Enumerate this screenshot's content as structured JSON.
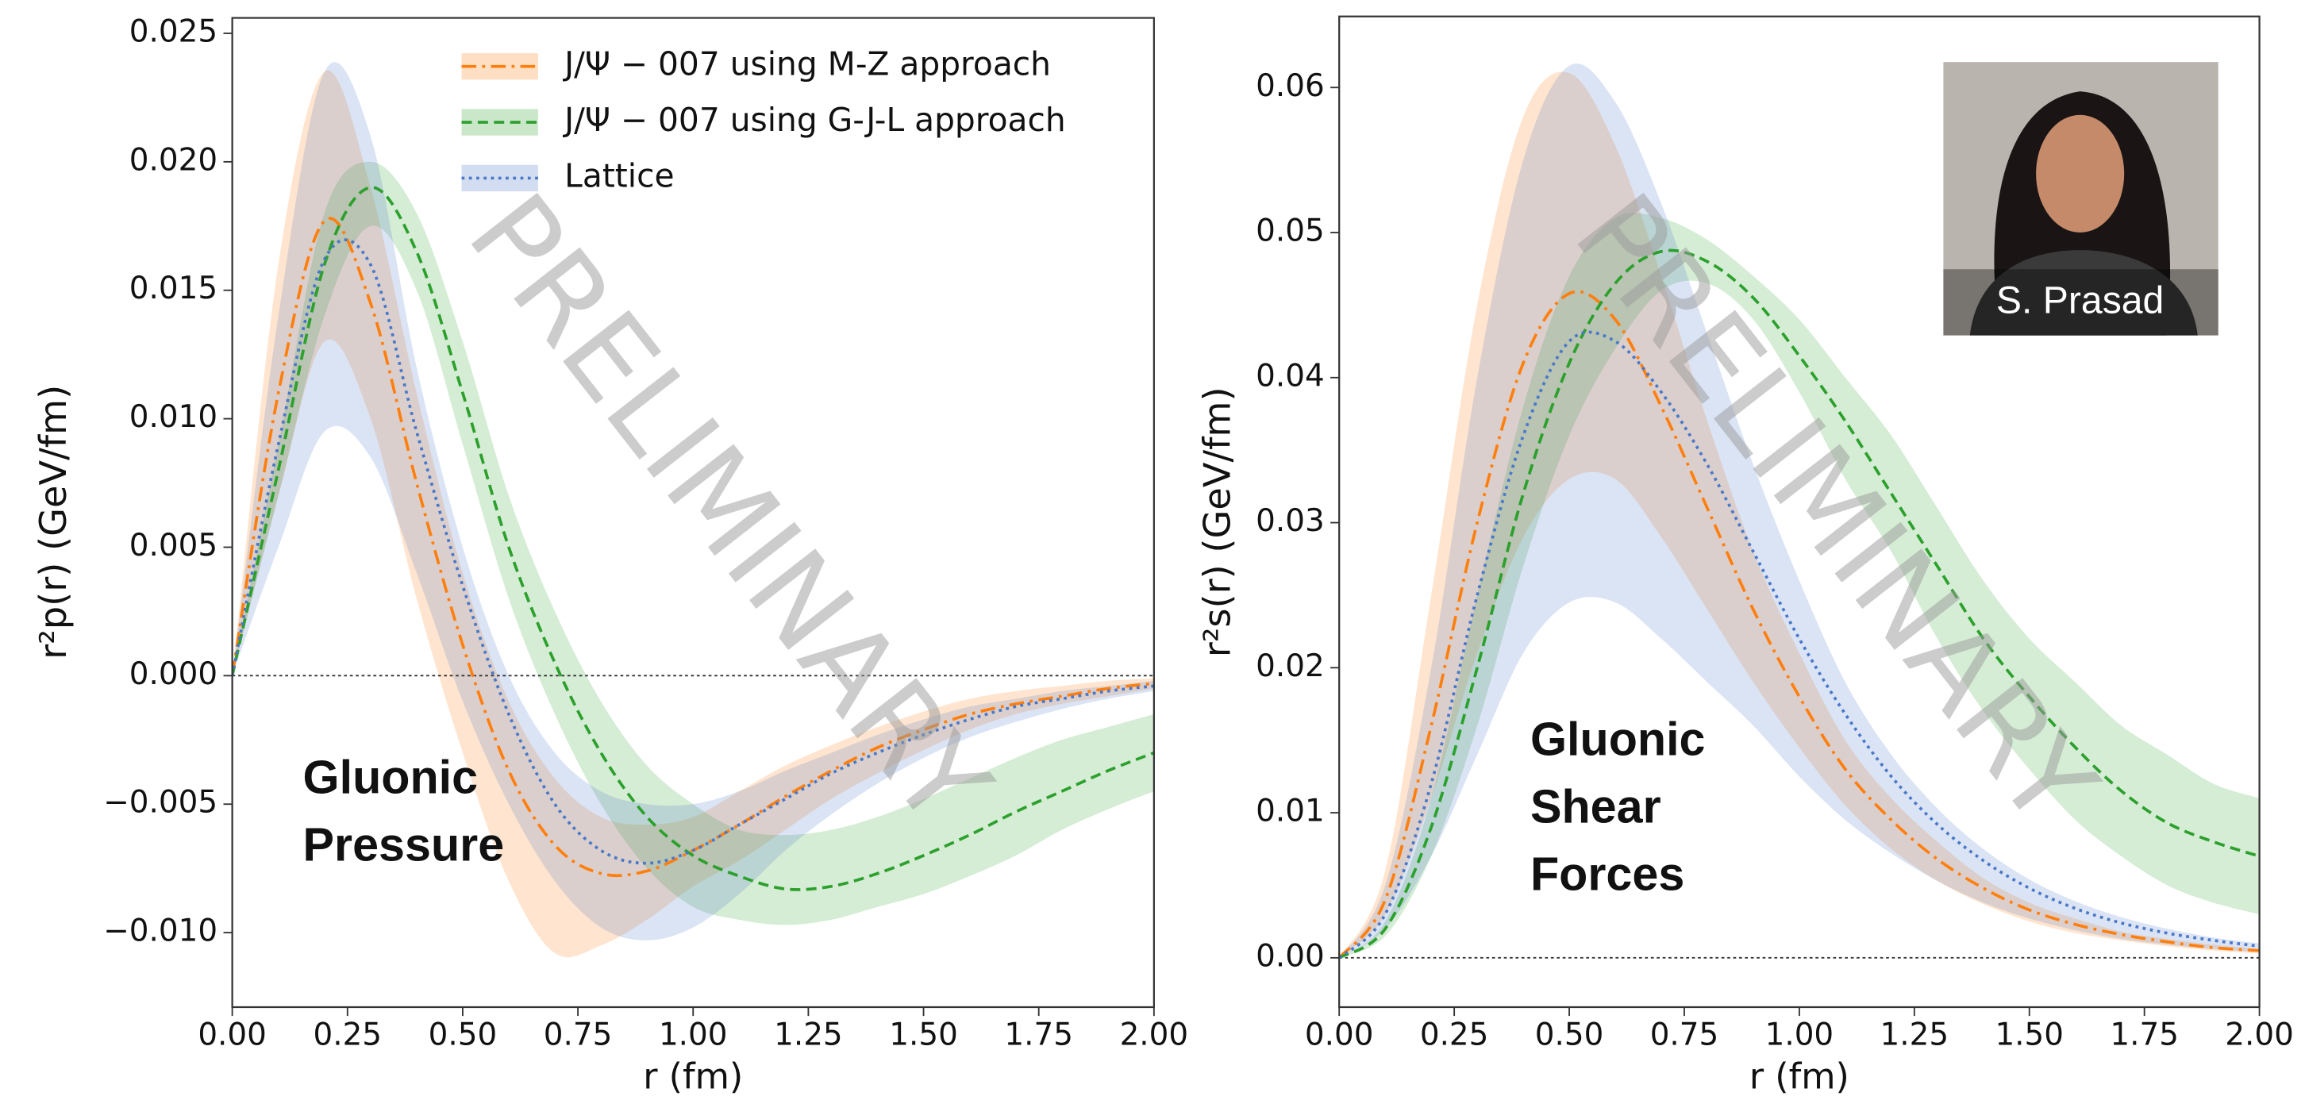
{
  "chart_data": [
    {
      "type": "line",
      "xlabel": "r (fm)",
      "ylabel": "r²p(r) (GeV/fm)",
      "annotation": [
        "Gluonic",
        "Pressure"
      ],
      "watermark": "PRELIMINARY",
      "xlim": [
        0,
        2.0
      ],
      "ylim": [
        -0.0129,
        0.0256
      ],
      "hline": 0,
      "legend": "upper right",
      "xticks": [
        {
          "value": 0,
          "label": "0.00"
        },
        {
          "value": 0.25,
          "label": "0.25"
        },
        {
          "value": 0.5,
          "label": "0.50"
        },
        {
          "value": 0.75,
          "label": "0.75"
        },
        {
          "value": 1.0,
          "label": "1.00"
        },
        {
          "value": 1.25,
          "label": "1.25"
        },
        {
          "value": 1.5,
          "label": "1.50"
        },
        {
          "value": 1.75,
          "label": "1.75"
        },
        {
          "value": 2.0,
          "label": "2.00"
        }
      ],
      "yticks": [
        {
          "value": -0.01,
          "label": "−0.010"
        },
        {
          "value": -0.005,
          "label": "−0.005"
        },
        {
          "value": 0,
          "label": "0.000"
        },
        {
          "value": 0.005,
          "label": "0.005"
        },
        {
          "value": 0.01,
          "label": "0.010"
        },
        {
          "value": 0.015,
          "label": "0.015"
        },
        {
          "value": 0.02,
          "label": "0.020"
        },
        {
          "value": 0.025,
          "label": "0.025"
        }
      ],
      "x": [
        0,
        0.1,
        0.2,
        0.3,
        0.4,
        0.5,
        0.6,
        0.7,
        0.8,
        0.9,
        1.0,
        1.1,
        1.2,
        1.3,
        1.4,
        1.5,
        1.6,
        1.7,
        1.8,
        1.9,
        2.0
      ],
      "series": [
        {
          "name": "J/Ψ − 007 using M-Z approach",
          "color": "#ff7f0e",
          "dash": "dashdot",
          "values": [
            0,
            0.011,
            0.0177,
            0.0145,
            0.0075,
            0.0012,
            -0.0037,
            -0.0066,
            -0.0077,
            -0.0076,
            -0.0068,
            -0.0058,
            -0.0047,
            -0.0037,
            -0.0028,
            -0.0021,
            -0.0015,
            -0.0011,
            -0.0008,
            -0.0005,
            -0.0003
          ],
          "upper": [
            0,
            0.016,
            0.0235,
            0.019,
            0.011,
            0.004,
            -0.001,
            -0.004,
            -0.0055,
            -0.0058,
            -0.0055,
            -0.0045,
            -0.0035,
            -0.0027,
            -0.002,
            -0.0014,
            -0.0009,
            -0.0006,
            -0.0004,
            -0.0002,
            -0.0001
          ],
          "lower": [
            0,
            0.007,
            0.013,
            0.01,
            0.003,
            -0.003,
            -0.008,
            -0.0108,
            -0.0105,
            -0.0095,
            -0.0082,
            -0.0072,
            -0.006,
            -0.0048,
            -0.0038,
            -0.0029,
            -0.0021,
            -0.0015,
            -0.0011,
            -0.0008,
            -0.0005
          ]
        },
        {
          "name": "J/Ψ − 007 using G-J-L approach",
          "color": "#2ca02c",
          "dash": "dashed",
          "values": [
            0,
            0.008,
            0.016,
            0.019,
            0.0165,
            0.011,
            0.005,
            0.0005,
            -0.003,
            -0.0055,
            -0.007,
            -0.0078,
            -0.0083,
            -0.0082,
            -0.0077,
            -0.007,
            -0.0062,
            -0.0053,
            -0.0045,
            -0.0037,
            -0.003
          ],
          "upper": [
            0,
            0.009,
            0.018,
            0.02,
            0.018,
            0.013,
            0.007,
            0.0025,
            -0.001,
            -0.0035,
            -0.005,
            -0.006,
            -0.0062,
            -0.006,
            -0.0055,
            -0.0048,
            -0.004,
            -0.0032,
            -0.0025,
            -0.002,
            -0.0015
          ],
          "lower": [
            0,
            0.007,
            0.014,
            0.0175,
            0.015,
            0.009,
            0.003,
            -0.0015,
            -0.005,
            -0.0075,
            -0.009,
            -0.0095,
            -0.0097,
            -0.0095,
            -0.009,
            -0.0085,
            -0.0078,
            -0.007,
            -0.006,
            -0.0052,
            -0.0045
          ]
        },
        {
          "name": "Lattice",
          "color": "#4a78c8",
          "dash": "dotted",
          "values": [
            0,
            0.009,
            0.0162,
            0.016,
            0.0095,
            0.0035,
            -0.0015,
            -0.005,
            -0.0068,
            -0.0073,
            -0.0068,
            -0.0058,
            -0.0048,
            -0.0038,
            -0.003,
            -0.0023,
            -0.0017,
            -0.0012,
            -0.0009,
            -0.0006,
            -0.0004
          ],
          "upper": [
            0,
            0.014,
            0.0235,
            0.021,
            0.012,
            0.005,
            0,
            -0.003,
            -0.0045,
            -0.005,
            -0.005,
            -0.0045,
            -0.0037,
            -0.003,
            -0.0023,
            -0.0017,
            -0.0012,
            -0.0009,
            -0.0006,
            -0.0004,
            -0.0002
          ],
          "lower": [
            0,
            0.005,
            0.0095,
            0.0085,
            0.004,
            -0.001,
            -0.005,
            -0.008,
            -0.0098,
            -0.0103,
            -0.0098,
            -0.0085,
            -0.0068,
            -0.0054,
            -0.0042,
            -0.0032,
            -0.0024,
            -0.0018,
            -0.0013,
            -0.0009,
            -0.0006
          ]
        }
      ]
    },
    {
      "type": "line",
      "xlabel": "r (fm)",
      "ylabel": "r²s(r) (GeV/fm)",
      "annotation": [
        "Gluonic",
        "Shear",
        "Forces"
      ],
      "watermark": "PRELIMINARY",
      "photo_caption": "S. Prasad",
      "xlim": [
        0,
        2.0
      ],
      "ylim": [
        -0.0034,
        0.0649
      ],
      "hline": 0,
      "xticks": [
        {
          "value": 0,
          "label": "0.00"
        },
        {
          "value": 0.25,
          "label": "0.25"
        },
        {
          "value": 0.5,
          "label": "0.50"
        },
        {
          "value": 0.75,
          "label": "0.75"
        },
        {
          "value": 1.0,
          "label": "1.00"
        },
        {
          "value": 1.25,
          "label": "1.25"
        },
        {
          "value": 1.5,
          "label": "1.50"
        },
        {
          "value": 1.75,
          "label": "1.75"
        },
        {
          "value": 2.0,
          "label": "2.00"
        }
      ],
      "yticks": [
        {
          "value": 0,
          "label": "0.00"
        },
        {
          "value": 0.01,
          "label": "0.01"
        },
        {
          "value": 0.02,
          "label": "0.02"
        },
        {
          "value": 0.03,
          "label": "0.03"
        },
        {
          "value": 0.04,
          "label": "0.04"
        },
        {
          "value": 0.05,
          "label": "0.05"
        },
        {
          "value": 0.06,
          "label": "0.06"
        }
      ],
      "x": [
        0,
        0.1,
        0.2,
        0.3,
        0.4,
        0.5,
        0.6,
        0.7,
        0.8,
        0.9,
        1.0,
        1.1,
        1.2,
        1.3,
        1.4,
        1.5,
        1.6,
        1.7,
        1.8,
        1.9,
        2.0
      ],
      "series": [
        {
          "color": "#ff7f0e",
          "dash": "dashdot",
          "values": [
            0,
            0.004,
            0.016,
            0.03,
            0.041,
            0.0458,
            0.044,
            0.038,
            0.031,
            0.024,
            0.018,
            0.013,
            0.0095,
            0.0068,
            0.0048,
            0.0033,
            0.0023,
            0.0016,
            0.0011,
            0.0007,
            0.0005
          ],
          "upper": [
            0,
            0.006,
            0.025,
            0.045,
            0.058,
            0.061,
            0.056,
            0.047,
            0.037,
            0.028,
            0.021,
            0.015,
            0.011,
            0.008,
            0.0055,
            0.0038,
            0.0027,
            0.0018,
            0.0013,
            0.0009,
            0.0006
          ],
          "lower": [
            0,
            0.003,
            0.011,
            0.021,
            0.029,
            0.033,
            0.033,
            0.029,
            0.024,
            0.019,
            0.0145,
            0.0105,
            0.0075,
            0.0053,
            0.0037,
            0.0025,
            0.0017,
            0.0012,
            0.0008,
            0.0005,
            0.0003
          ]
        },
        {
          "color": "#2ca02c",
          "dash": "dashed",
          "values": [
            0,
            0.002,
            0.009,
            0.02,
            0.032,
            0.041,
            0.0465,
            0.0487,
            0.048,
            0.0455,
            0.0415,
            0.037,
            0.032,
            0.027,
            0.022,
            0.018,
            0.0145,
            0.0115,
            0.0093,
            0.008,
            0.007
          ],
          "upper": [
            0,
            0.0025,
            0.011,
            0.025,
            0.038,
            0.047,
            0.051,
            0.051,
            0.0495,
            0.047,
            0.044,
            0.04,
            0.036,
            0.031,
            0.026,
            0.022,
            0.019,
            0.016,
            0.014,
            0.012,
            0.011
          ],
          "lower": [
            0,
            0.0015,
            0.007,
            0.016,
            0.027,
            0.036,
            0.042,
            0.046,
            0.0465,
            0.044,
            0.039,
            0.033,
            0.028,
            0.022,
            0.017,
            0.013,
            0.0095,
            0.007,
            0.005,
            0.0038,
            0.003
          ]
        },
        {
          "color": "#4a78c8",
          "dash": "dotted",
          "values": [
            0,
            0.003,
            0.012,
            0.025,
            0.036,
            0.0425,
            0.0425,
            0.039,
            0.034,
            0.028,
            0.022,
            0.0168,
            0.0125,
            0.0092,
            0.0067,
            0.0048,
            0.0034,
            0.0024,
            0.0017,
            0.0012,
            0.0008
          ],
          "upper": [
            0,
            0.005,
            0.02,
            0.04,
            0.055,
            0.0615,
            0.059,
            0.052,
            0.043,
            0.034,
            0.026,
            0.019,
            0.014,
            0.0103,
            0.0075,
            0.0054,
            0.0039,
            0.0028,
            0.002,
            0.0014,
            0.001
          ],
          "lower": [
            0,
            0.002,
            0.007,
            0.014,
            0.021,
            0.0245,
            0.0245,
            0.022,
            0.019,
            0.016,
            0.0125,
            0.0095,
            0.0072,
            0.0053,
            0.0038,
            0.0027,
            0.0019,
            0.0013,
            0.0009,
            0.0006,
            0.0004
          ]
        }
      ]
    }
  ]
}
